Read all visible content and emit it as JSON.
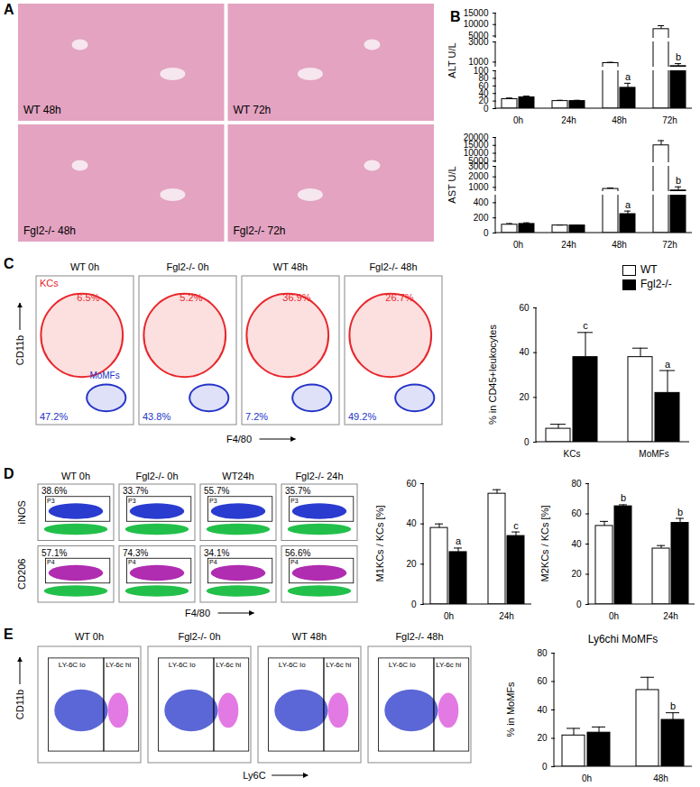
{
  "chart_data": [
    {
      "type": "image",
      "panel": "A",
      "color": "#e3a3c1",
      "images": [
        "WT 48h",
        "WT 72h",
        "Fgl2-/- 48h",
        "Fgl2-/- 72h"
      ]
    },
    {
      "type": "bar",
      "panel": "B",
      "ylabel": "ALT U/L",
      "categories": [
        "0h",
        "24h",
        "48h",
        "72h"
      ],
      "series": [
        {
          "name": "WT",
          "color": "#ffffff",
          "values": [
            25,
            20,
            900,
            8000
          ],
          "errors": [
            3,
            2,
            80,
            1500
          ]
        },
        {
          "name": "Fgl2-/-",
          "color": "#000000",
          "values": [
            30,
            20,
            55,
            600
          ],
          "errors": [
            3,
            2,
            12,
            250
          ]
        }
      ],
      "y_segments": [
        {
          "ylim": [
            4000,
            15000
          ],
          "yticks": [
            5000,
            10000,
            15000
          ]
        },
        {
          "ylim": [
            500,
            3000
          ],
          "yticks": [
            1000,
            3000
          ]
        },
        {
          "ylim": [
            0,
            100
          ],
          "yticks": [
            0,
            20,
            40,
            60,
            80,
            100
          ]
        }
      ],
      "annotations": [
        {
          "category": "48h",
          "series": "Fgl2-/-",
          "text": "a"
        },
        {
          "category": "72h",
          "series": "Fgl2-/-",
          "text": "b"
        }
      ]
    },
    {
      "type": "bar",
      "ylabel": "AST U/L",
      "categories": [
        "0h",
        "24h",
        "48h",
        "72h"
      ],
      "series": [
        {
          "name": "WT",
          "color": "#ffffff",
          "values": [
            110,
            100,
            850,
            15000
          ],
          "errors": [
            15,
            5,
            90,
            3000
          ]
        },
        {
          "name": "Fgl2-/-",
          "color": "#000000",
          "values": [
            120,
            100,
            250,
            700
          ],
          "errors": [
            15,
            5,
            40,
            350
          ]
        }
      ],
      "y_segments": [
        {
          "ylim": [
            4000,
            20000
          ],
          "yticks": [
            5000,
            10000,
            15000,
            20000
          ]
        },
        {
          "ylim": [
            600,
            3000
          ],
          "yticks": [
            1000,
            2000,
            3000
          ]
        },
        {
          "ylim": [
            0,
            500
          ],
          "yticks": [
            0,
            200,
            400
          ]
        }
      ],
      "annotations": [
        {
          "category": "48h",
          "series": "Fgl2-/-",
          "text": "a"
        },
        {
          "category": "72h",
          "series": "Fgl2-/-",
          "text": "b"
        }
      ]
    },
    {
      "type": "flow",
      "panel": "C",
      "xlabel": "F4/80",
      "ylabel": "CD11b",
      "gates": [
        {
          "name": "KCs",
          "color": "#e8262b"
        },
        {
          "name": "MoMFs",
          "color": "#2434c8"
        }
      ],
      "plots": [
        {
          "label": "WT 0h",
          "texts": [
            "6.5%",
            "47.2%"
          ]
        },
        {
          "label": "Fgl2-/- 0h",
          "texts": [
            "5.2%",
            "43.8%"
          ]
        },
        {
          "label": "WT 48h",
          "texts": [
            "36.9%",
            "7.2%"
          ]
        },
        {
          "label": "Fgl2-/- 48h",
          "texts": [
            "26.7%",
            "49.2%"
          ]
        }
      ]
    },
    {
      "type": "bar",
      "ylabel": "% in CD45+leukocytes",
      "categories": [
        "KCs",
        "MoMFs"
      ],
      "series": [
        {
          "name": "WT",
          "color": "#ffffff",
          "values": [
            6,
            38
          ],
          "errors": [
            2,
            4
          ]
        },
        {
          "name": "Fgl2-/-",
          "color": "#000000",
          "values": [
            38,
            22
          ],
          "errors": [
            11,
            10
          ]
        }
      ],
      "ylim": [
        0,
        60
      ],
      "yticks": [
        0,
        20,
        40,
        60
      ],
      "legend": "top-right",
      "annotations": [
        {
          "category": "KCs",
          "series": "Fgl2-/-",
          "text": "c"
        },
        {
          "category": "MoMFs",
          "series": "Fgl2-/-",
          "text": "a"
        }
      ]
    },
    {
      "type": "flow",
      "panel": "D",
      "xlabel": "F4/80",
      "labels": [
        "WT 0h",
        "Fgl2-/- 0h",
        "WT24h",
        "Fgl2-/- 24h"
      ],
      "rows": [
        {
          "ylabel": "iNOS",
          "gate": "P3",
          "color": "#2a3bd0",
          "texts": [
            "38.6%",
            "33.7%",
            "55.7%",
            "35.7%"
          ]
        },
        {
          "ylabel": "CD206",
          "gate": "P4",
          "color": "#b02cb0",
          "texts": [
            "57.1%",
            "74.3%",
            "34.1%",
            "56.6%"
          ]
        }
      ]
    },
    {
      "type": "bar",
      "ylabel": "M1KCs / KCs [%]",
      "categories": [
        "0h",
        "24h"
      ],
      "series": [
        {
          "name": "WT",
          "color": "#ffffff",
          "values": [
            38,
            55
          ],
          "errors": [
            2,
            2
          ]
        },
        {
          "name": "Fgl2-/-",
          "color": "#000000",
          "values": [
            26,
            34
          ],
          "errors": [
            2,
            2
          ]
        }
      ],
      "ylim": [
        0,
        60
      ],
      "yticks": [
        0,
        20,
        40,
        60
      ],
      "annotations": [
        {
          "category": "0h",
          "series": "Fgl2-/-",
          "text": "a"
        },
        {
          "category": "24h",
          "series": "Fgl2-/-",
          "text": "c"
        }
      ]
    },
    {
      "type": "bar",
      "ylabel": "M2KCs / KCs [%]",
      "categories": [
        "0h",
        "24h"
      ],
      "series": [
        {
          "name": "WT",
          "color": "#ffffff",
          "values": [
            52,
            37
          ],
          "errors": [
            3,
            2
          ]
        },
        {
          "name": "Fgl2-/-",
          "color": "#000000",
          "values": [
            65,
            54
          ],
          "errors": [
            1,
            3
          ]
        }
      ],
      "ylim": [
        0,
        80
      ],
      "yticks": [
        0,
        20,
        40,
        60,
        80
      ],
      "annotations": [
        {
          "category": "0h",
          "series": "Fgl2-/-",
          "text": "b"
        },
        {
          "category": "24h",
          "series": "Fgl2-/-",
          "text": "b"
        }
      ]
    },
    {
      "type": "flow",
      "panel": "E",
      "xlabel": "Ly6C",
      "ylabel": "CD11b",
      "labels": [
        "WT 0h",
        "Fgl2-/- 0h",
        "WT 48h",
        "Fgl2-/- 48h"
      ],
      "gates": [
        {
          "name": "LY-6C lo",
          "color": "#2434c8"
        },
        {
          "name": "LY-6c hi",
          "color": "#d020d0"
        }
      ]
    },
    {
      "type": "bar",
      "title": "Ly6chi MoMFs",
      "ylabel": "% in MoMFs",
      "categories": [
        "0h",
        "48h"
      ],
      "series": [
        {
          "name": "WT",
          "color": "#ffffff",
          "values": [
            22,
            54
          ],
          "errors": [
            5,
            9
          ]
        },
        {
          "name": "Fgl2-/-",
          "color": "#000000",
          "values": [
            24,
            33
          ],
          "errors": [
            4,
            5
          ]
        }
      ],
      "ylim": [
        0,
        80
      ],
      "yticks": [
        0,
        20,
        40,
        60,
        80
      ],
      "annotations": [
        {
          "category": "48h",
          "series": "Fgl2-/-",
          "text": "b"
        }
      ]
    }
  ]
}
